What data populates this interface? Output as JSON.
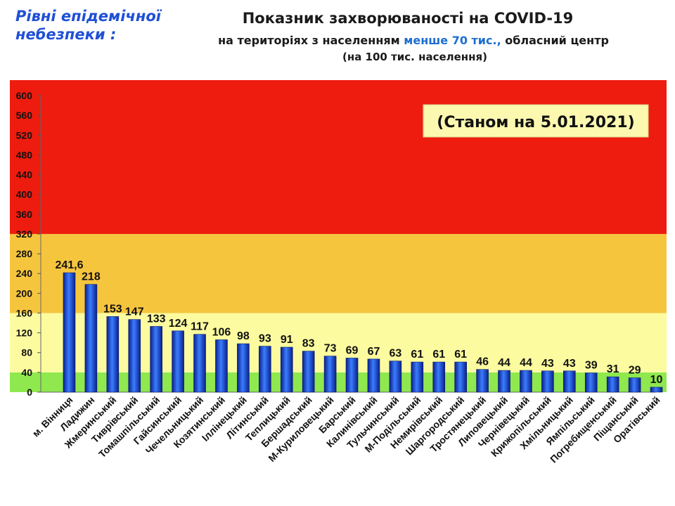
{
  "header": {
    "levels_title": "Рівні епідемічної небезпеки :",
    "title": "Показник захворюваності на COVID-19",
    "subtitle_prefix": "на територіях з населенням ",
    "subtitle_highlight": "менше 70 тис.,",
    "subtitle_suffix": " обласний центр",
    "subtitle_units": "(на 100  тис. населення)"
  },
  "colors": {
    "zone_red": "#ee1c0e",
    "zone_orange": "#f6c53e",
    "zone_yellow": "#fcfb9f",
    "zone_green": "#8fe84e",
    "bar": "#1b3fd8",
    "highlight_text": "#1e6fd0",
    "date_box": "#fdf8b0"
  },
  "chart_data": {
    "type": "bar",
    "date_label": "(Станом на 5.01.2021)",
    "ylim": [
      0,
      600
    ],
    "yticks": [
      0,
      40,
      80,
      120,
      160,
      200,
      240,
      280,
      320,
      360,
      400,
      440,
      480,
      520,
      560,
      600
    ],
    "zones": [
      {
        "level": "green",
        "from": 0,
        "to": 40
      },
      {
        "level": "yellow",
        "from": 40,
        "to": 160
      },
      {
        "level": "orange",
        "from": 160,
        "to": 320
      },
      {
        "level": "red",
        "from": 320,
        "to": 600
      }
    ],
    "categories": [
      "м. Вінниця",
      "Ладижин",
      "Жмеринський",
      "Тиврівський",
      "Томашпільський",
      "Гайсинський",
      "Чечельницький",
      "Козятинський",
      "Іллінецький",
      "Літинський",
      "Теплицький",
      "Бершадський",
      "М-Куриловецький",
      "Барський",
      "Калинівський",
      "Тульчинський",
      "М-Подільський",
      "Немирівський",
      "Шаргородський",
      "Тростянецький",
      "Липовецький",
      "Чернівецький",
      "Крижопільський",
      "Хмільницький",
      "Ямпільський",
      "Погребищенський",
      "Піщанський",
      "Оратівський"
    ],
    "values": [
      241.6,
      218,
      153,
      147,
      133,
      124,
      117,
      106,
      98,
      93,
      91,
      83,
      73,
      69,
      67,
      63,
      61,
      61,
      61,
      46,
      44,
      44,
      43,
      43,
      39,
      31,
      29,
      10
    ],
    "value_labels": [
      "241,6",
      "218",
      "153",
      "147",
      "133",
      "124",
      "117",
      "106",
      "98",
      "93",
      "91",
      "83",
      "73",
      "69",
      "67",
      "63",
      "61",
      "61",
      "61",
      "46",
      "44",
      "44",
      "43",
      "43",
      "39",
      "31",
      "29",
      "10"
    ]
  }
}
